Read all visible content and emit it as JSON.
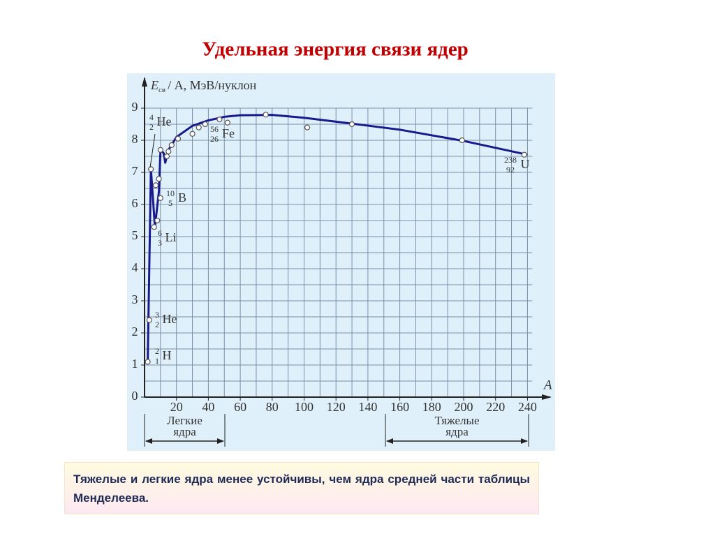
{
  "chart_data": {
    "type": "scatter",
    "title": "Удельная энергия связи ядер",
    "y_label": {
      "symbol": "E",
      "subscript": "св",
      "rest": "/ A, МэВ/нуклон"
    },
    "x_label": "A",
    "xlim": [
      0,
      243
    ],
    "ylim": [
      0,
      9
    ],
    "xticks": [
      20,
      40,
      60,
      80,
      100,
      120,
      140,
      160,
      180,
      200,
      220,
      240
    ],
    "yticks": [
      0,
      1,
      2,
      3,
      4,
      5,
      6,
      7,
      8,
      9
    ],
    "minor_grid": {
      "x": 10,
      "y": 0.5
    },
    "grid": true,
    "series": [
      {
        "color": "#ffffff",
        "x": [
          2,
          3,
          4,
          6,
          8,
          7,
          9,
          10,
          10,
          14,
          15,
          17,
          21,
          30,
          34,
          38,
          47,
          52,
          76,
          102,
          130,
          199,
          238
        ],
        "values": [
          1.1,
          2.4,
          7.1,
          5.3,
          5.5,
          6.6,
          6.8,
          6.2,
          7.7,
          7.5,
          7.65,
          7.85,
          8.05,
          8.2,
          8.4,
          8.5,
          8.65,
          8.55,
          8.8,
          8.4,
          8.5,
          8.0,
          7.55
        ]
      },
      {
        "color": "#1a1a8c",
        "x": [
          2,
          4,
          6.5,
          9,
          10,
          12,
          13,
          15,
          20,
          30,
          40,
          50,
          60,
          80,
          100,
          130,
          160,
          200,
          240
        ],
        "values": [
          1.1,
          7.1,
          5.3,
          6.4,
          7.7,
          7.6,
          7.3,
          7.7,
          8.1,
          8.45,
          8.62,
          8.73,
          8.78,
          8.79,
          8.7,
          8.52,
          8.33,
          7.98,
          7.55
        ]
      }
    ],
    "isotopes": [
      {
        "mass": "2",
        "z": "1",
        "symbol": "H"
      },
      {
        "mass": "3",
        "z": "2",
        "symbol": "He"
      },
      {
        "mass": "4",
        "z": "2",
        "symbol": "He"
      },
      {
        "mass": "6",
        "z": "3",
        "symbol": "Li"
      },
      {
        "mass": "10",
        "z": "5",
        "symbol": "B"
      },
      {
        "mass": "56",
        "z": "26",
        "symbol": "Fe"
      },
      {
        "mass": "238",
        "z": "92",
        "symbol": "U"
      }
    ],
    "regions": [
      {
        "lines": [
          "Легкие",
          "ядра"
        ]
      },
      {
        "lines": [
          "Тяжелые",
          "ядра"
        ]
      }
    ]
  },
  "note": "Тяжелые и легкие ядра менее устойчивы, чем ядра средней части таблицы Менделеева."
}
